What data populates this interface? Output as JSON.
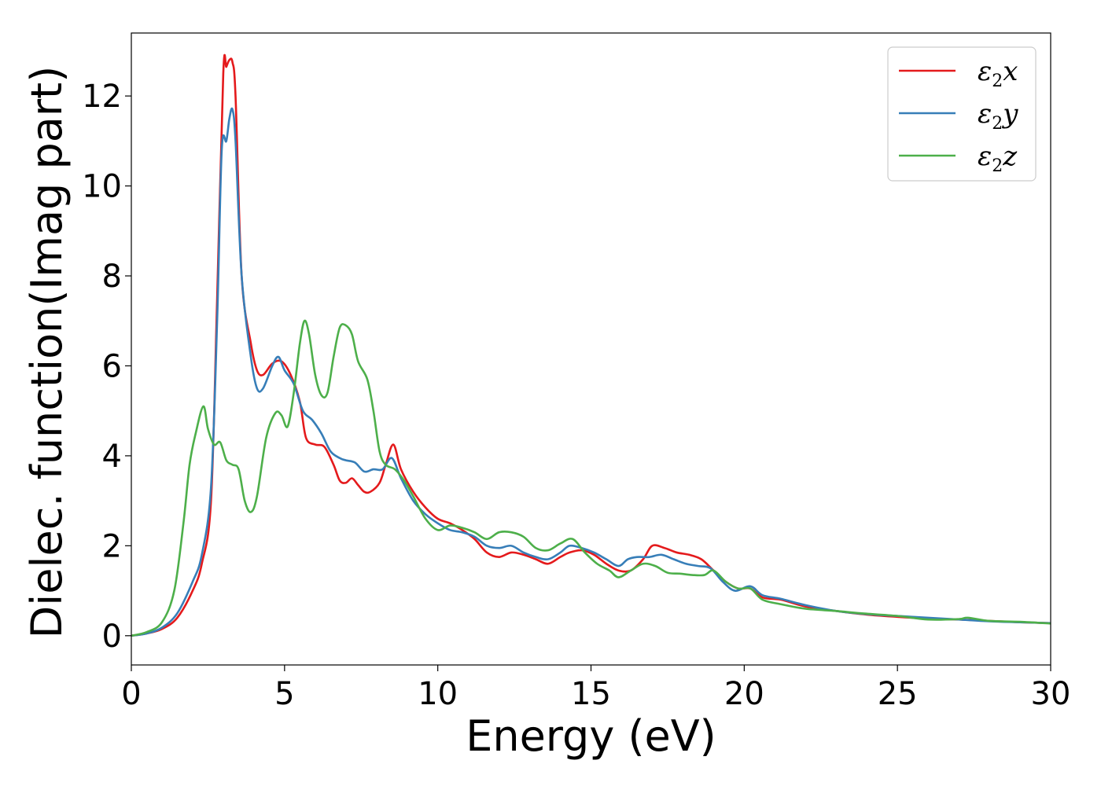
{
  "chart_data": {
    "type": "line",
    "title": "",
    "xlabel": "Energy (eV)",
    "ylabel": "Dielec. function(Imag part)",
    "xlim": [
      0,
      30
    ],
    "ylim": [
      -0.65,
      13.4
    ],
    "xticks": [
      0,
      5,
      10,
      15,
      20,
      25,
      30
    ],
    "yticks": [
      0,
      2,
      4,
      6,
      8,
      10,
      12
    ],
    "grid": false,
    "legend_position": "top-right",
    "series": [
      {
        "name": "ε2x",
        "legend_base": "ε",
        "legend_sub": "2",
        "legend_var": "x",
        "color": "#e41a1c",
        "points": [
          [
            0,
            0
          ],
          [
            0.5,
            0.05
          ],
          [
            1,
            0.15
          ],
          [
            1.5,
            0.4
          ],
          [
            2,
            1.0
          ],
          [
            2.3,
            1.6
          ],
          [
            2.6,
            3.0
          ],
          [
            2.8,
            7.5
          ],
          [
            3.0,
            12.5
          ],
          [
            3.1,
            12.65
          ],
          [
            3.2,
            12.8
          ],
          [
            3.3,
            12.75
          ],
          [
            3.4,
            12.0
          ],
          [
            3.6,
            8.0
          ],
          [
            3.9,
            6.5
          ],
          [
            4.1,
            5.9
          ],
          [
            4.3,
            5.8
          ],
          [
            4.6,
            6.05
          ],
          [
            4.9,
            6.1
          ],
          [
            5.2,
            5.8
          ],
          [
            5.5,
            5.2
          ],
          [
            5.7,
            4.4
          ],
          [
            6.0,
            4.25
          ],
          [
            6.3,
            4.2
          ],
          [
            6.6,
            3.8
          ],
          [
            6.8,
            3.45
          ],
          [
            7.0,
            3.4
          ],
          [
            7.2,
            3.5
          ],
          [
            7.4,
            3.35
          ],
          [
            7.6,
            3.2
          ],
          [
            7.8,
            3.2
          ],
          [
            8.1,
            3.4
          ],
          [
            8.3,
            3.8
          ],
          [
            8.55,
            4.25
          ],
          [
            8.8,
            3.7
          ],
          [
            9.2,
            3.2
          ],
          [
            9.6,
            2.85
          ],
          [
            10.0,
            2.6
          ],
          [
            10.4,
            2.5
          ],
          [
            10.8,
            2.35
          ],
          [
            11.2,
            2.15
          ],
          [
            11.6,
            1.85
          ],
          [
            12.0,
            1.75
          ],
          [
            12.4,
            1.85
          ],
          [
            12.8,
            1.8
          ],
          [
            13.2,
            1.7
          ],
          [
            13.6,
            1.6
          ],
          [
            14.0,
            1.75
          ],
          [
            14.3,
            1.85
          ],
          [
            14.7,
            1.9
          ],
          [
            15.1,
            1.8
          ],
          [
            15.5,
            1.6
          ],
          [
            15.9,
            1.45
          ],
          [
            16.3,
            1.45
          ],
          [
            16.7,
            1.7
          ],
          [
            17.0,
            2.0
          ],
          [
            17.4,
            1.95
          ],
          [
            17.8,
            1.85
          ],
          [
            18.2,
            1.8
          ],
          [
            18.6,
            1.7
          ],
          [
            19.0,
            1.45
          ],
          [
            19.4,
            1.2
          ],
          [
            19.8,
            1.05
          ],
          [
            20.2,
            1.05
          ],
          [
            20.6,
            0.85
          ],
          [
            21.2,
            0.8
          ],
          [
            22.0,
            0.65
          ],
          [
            23.0,
            0.55
          ],
          [
            24.0,
            0.47
          ],
          [
            25.0,
            0.42
          ],
          [
            26.0,
            0.38
          ],
          [
            27.0,
            0.36
          ],
          [
            28.0,
            0.33
          ],
          [
            29.0,
            0.3
          ],
          [
            30.0,
            0.28
          ]
        ]
      },
      {
        "name": "ε2y",
        "legend_base": "ε",
        "legend_sub": "2",
        "legend_var": "y",
        "color": "#377eb8",
        "points": [
          [
            0,
            0
          ],
          [
            0.5,
            0.05
          ],
          [
            1,
            0.18
          ],
          [
            1.5,
            0.5
          ],
          [
            2,
            1.2
          ],
          [
            2.3,
            1.8
          ],
          [
            2.6,
            3.3
          ],
          [
            2.8,
            7.0
          ],
          [
            2.95,
            10.8
          ],
          [
            3.1,
            11.0
          ],
          [
            3.2,
            11.5
          ],
          [
            3.3,
            11.7
          ],
          [
            3.4,
            11.0
          ],
          [
            3.6,
            8.0
          ],
          [
            3.9,
            6.2
          ],
          [
            4.1,
            5.5
          ],
          [
            4.3,
            5.5
          ],
          [
            4.6,
            6.0
          ],
          [
            4.8,
            6.2
          ],
          [
            5.0,
            5.9
          ],
          [
            5.3,
            5.6
          ],
          [
            5.6,
            5.0
          ],
          [
            5.9,
            4.8
          ],
          [
            6.2,
            4.5
          ],
          [
            6.5,
            4.1
          ],
          [
            6.8,
            3.95
          ],
          [
            7.0,
            3.9
          ],
          [
            7.3,
            3.85
          ],
          [
            7.6,
            3.65
          ],
          [
            7.9,
            3.7
          ],
          [
            8.2,
            3.7
          ],
          [
            8.5,
            3.95
          ],
          [
            8.8,
            3.5
          ],
          [
            9.2,
            3.0
          ],
          [
            9.6,
            2.7
          ],
          [
            10.0,
            2.5
          ],
          [
            10.4,
            2.35
          ],
          [
            10.8,
            2.3
          ],
          [
            11.2,
            2.2
          ],
          [
            11.6,
            2.0
          ],
          [
            12.0,
            1.95
          ],
          [
            12.4,
            2.0
          ],
          [
            12.8,
            1.85
          ],
          [
            13.2,
            1.75
          ],
          [
            13.6,
            1.7
          ],
          [
            14.0,
            1.85
          ],
          [
            14.3,
            2.0
          ],
          [
            14.7,
            1.95
          ],
          [
            15.1,
            1.85
          ],
          [
            15.5,
            1.7
          ],
          [
            15.9,
            1.55
          ],
          [
            16.2,
            1.7
          ],
          [
            16.5,
            1.75
          ],
          [
            16.9,
            1.75
          ],
          [
            17.3,
            1.8
          ],
          [
            17.7,
            1.7
          ],
          [
            18.1,
            1.6
          ],
          [
            18.5,
            1.55
          ],
          [
            18.9,
            1.5
          ],
          [
            19.3,
            1.2
          ],
          [
            19.7,
            1.0
          ],
          [
            20.2,
            1.1
          ],
          [
            20.6,
            0.9
          ],
          [
            21.2,
            0.82
          ],
          [
            22.0,
            0.68
          ],
          [
            23.0,
            0.55
          ],
          [
            24.0,
            0.48
          ],
          [
            25.0,
            0.44
          ],
          [
            26.0,
            0.4
          ],
          [
            27.0,
            0.36
          ],
          [
            28.0,
            0.32
          ],
          [
            29.0,
            0.3
          ],
          [
            30.0,
            0.28
          ]
        ]
      },
      {
        "name": "ε2z",
        "legend_base": "ε",
        "legend_sub": "2",
        "legend_var": "z",
        "color": "#4daf4a",
        "points": [
          [
            0,
            0
          ],
          [
            0.5,
            0.08
          ],
          [
            1,
            0.3
          ],
          [
            1.4,
            1.0
          ],
          [
            1.7,
            2.5
          ],
          [
            1.9,
            3.8
          ],
          [
            2.1,
            4.5
          ],
          [
            2.35,
            5.1
          ],
          [
            2.5,
            4.6
          ],
          [
            2.7,
            4.25
          ],
          [
            2.9,
            4.3
          ],
          [
            3.1,
            3.9
          ],
          [
            3.3,
            3.8
          ],
          [
            3.5,
            3.7
          ],
          [
            3.7,
            3.0
          ],
          [
            3.9,
            2.75
          ],
          [
            4.1,
            3.1
          ],
          [
            4.4,
            4.4
          ],
          [
            4.7,
            4.95
          ],
          [
            4.9,
            4.9
          ],
          [
            5.1,
            4.65
          ],
          [
            5.3,
            5.4
          ],
          [
            5.5,
            6.5
          ],
          [
            5.65,
            7.0
          ],
          [
            5.8,
            6.7
          ],
          [
            6.0,
            5.8
          ],
          [
            6.2,
            5.35
          ],
          [
            6.4,
            5.4
          ],
          [
            6.6,
            6.2
          ],
          [
            6.8,
            6.85
          ],
          [
            7.0,
            6.9
          ],
          [
            7.2,
            6.7
          ],
          [
            7.4,
            6.1
          ],
          [
            7.7,
            5.7
          ],
          [
            7.9,
            5.0
          ],
          [
            8.1,
            4.1
          ],
          [
            8.3,
            3.8
          ],
          [
            8.6,
            3.7
          ],
          [
            8.9,
            3.45
          ],
          [
            9.2,
            3.1
          ],
          [
            9.6,
            2.6
          ],
          [
            10.0,
            2.35
          ],
          [
            10.4,
            2.45
          ],
          [
            10.8,
            2.4
          ],
          [
            11.2,
            2.3
          ],
          [
            11.6,
            2.15
          ],
          [
            12.0,
            2.3
          ],
          [
            12.4,
            2.3
          ],
          [
            12.8,
            2.2
          ],
          [
            13.2,
            1.95
          ],
          [
            13.6,
            1.9
          ],
          [
            14.0,
            2.05
          ],
          [
            14.4,
            2.15
          ],
          [
            14.8,
            1.85
          ],
          [
            15.2,
            1.6
          ],
          [
            15.6,
            1.45
          ],
          [
            15.9,
            1.3
          ],
          [
            16.3,
            1.45
          ],
          [
            16.7,
            1.6
          ],
          [
            17.1,
            1.55
          ],
          [
            17.5,
            1.4
          ],
          [
            17.9,
            1.38
          ],
          [
            18.3,
            1.35
          ],
          [
            18.7,
            1.35
          ],
          [
            19.0,
            1.45
          ],
          [
            19.4,
            1.2
          ],
          [
            19.8,
            1.05
          ],
          [
            20.2,
            1.05
          ],
          [
            20.6,
            0.8
          ],
          [
            21.2,
            0.7
          ],
          [
            22.0,
            0.6
          ],
          [
            23.0,
            0.55
          ],
          [
            23.8,
            0.5
          ],
          [
            25.0,
            0.44
          ],
          [
            26.0,
            0.36
          ],
          [
            27.0,
            0.37
          ],
          [
            27.3,
            0.4
          ],
          [
            28.0,
            0.33
          ],
          [
            29.0,
            0.31
          ],
          [
            30.0,
            0.27
          ]
        ]
      }
    ]
  }
}
